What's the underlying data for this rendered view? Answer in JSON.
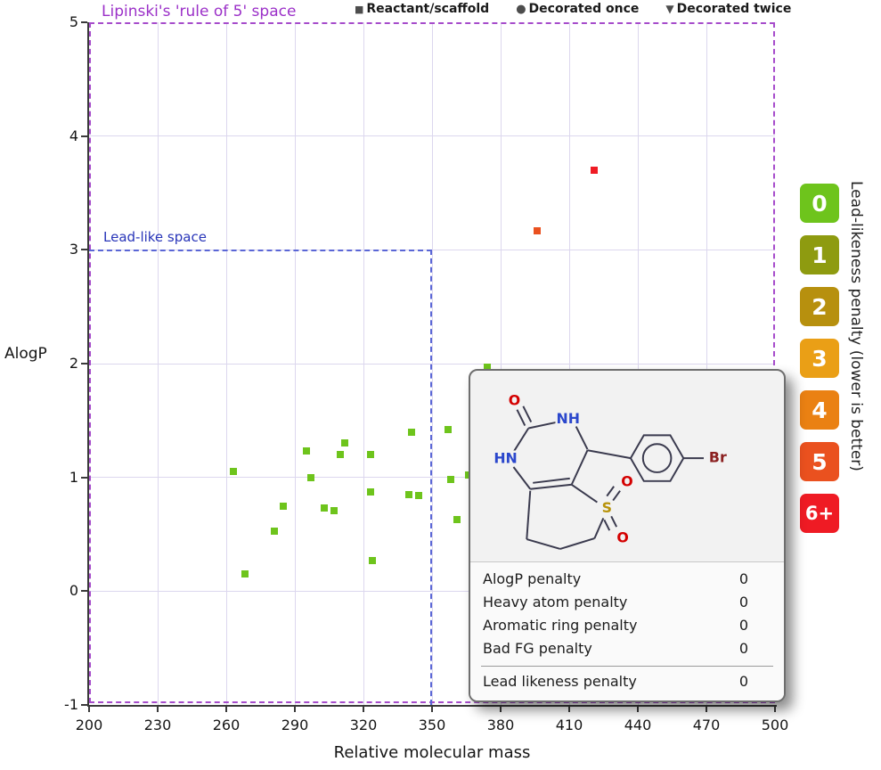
{
  "legend": {
    "items": [
      {
        "marker": "square",
        "glyph": "■",
        "label": "Reactant/scaffold"
      },
      {
        "marker": "circle",
        "glyph": "●",
        "label": "Decorated once"
      },
      {
        "marker": "triangle-down",
        "glyph": "▼",
        "label": "Decorated twice"
      }
    ]
  },
  "annotations": {
    "lipinski_label": "Lipinski's 'rule of 5' space",
    "leadlike_label": "Lead-like space"
  },
  "axes": {
    "x_label": "Relative molecular mass",
    "y_label": "AlogP",
    "x_ticks": [
      200,
      230,
      260,
      290,
      320,
      350,
      380,
      410,
      440,
      470,
      500
    ],
    "y_ticks": [
      -1,
      0,
      1,
      2,
      3,
      4,
      5
    ],
    "x_range": [
      200,
      500
    ],
    "y_range": [
      -1,
      5
    ]
  },
  "penalty_scale": {
    "title": "Lead-likeness penalty (lower is better)",
    "items": [
      {
        "label": "0",
        "color": "#6ec41c"
      },
      {
        "label": "1",
        "color": "#8e9b10"
      },
      {
        "label": "2",
        "color": "#b7900e"
      },
      {
        "label": "3",
        "color": "#ea9f16"
      },
      {
        "label": "4",
        "color": "#ea8113"
      },
      {
        "label": "5",
        "color": "#ea511f"
      },
      {
        "label": "6+",
        "color": "#ef1b24"
      }
    ]
  },
  "chart_data": {
    "type": "scatter",
    "title": "",
    "xlabel": "Relative molecular mass",
    "ylabel": "AlogP",
    "xlim": [
      200,
      500
    ],
    "ylim": [
      -1,
      5
    ],
    "grid": true,
    "legend_position": "top",
    "regions": [
      {
        "name": "Lipinski's 'rule of 5' space",
        "x_max": 500,
        "y_max": 5,
        "style": "dashed",
        "color": "#a64ccb"
      },
      {
        "name": "Lead-like space",
        "x_max": 350,
        "y_max": 3,
        "style": "dashed",
        "color": "#5a66d6"
      }
    ],
    "series": [
      {
        "name": "Reactant/scaffold (penalty 0)",
        "marker": "square",
        "penalty": "0",
        "points": [
          [
            263,
            1.05
          ],
          [
            268,
            0.15
          ],
          [
            281,
            0.53
          ],
          [
            285,
            0.75
          ],
          [
            295,
            1.23
          ],
          [
            297,
            1.0
          ],
          [
            303,
            0.73
          ],
          [
            307,
            0.71
          ],
          [
            310,
            1.2
          ],
          [
            312,
            1.3
          ],
          [
            323,
            1.2
          ],
          [
            323,
            0.87
          ],
          [
            324,
            0.27
          ],
          [
            340,
            0.85
          ],
          [
            341,
            1.4
          ],
          [
            344,
            0.84
          ],
          [
            357,
            1.42
          ],
          [
            358,
            0.98
          ],
          [
            361,
            0.63
          ],
          [
            366,
            1.02
          ],
          [
            374,
            1.97
          ]
        ]
      },
      {
        "name": "Reactant/scaffold (penalty 5)",
        "marker": "square",
        "penalty": "5",
        "points": [
          [
            396,
            3.17
          ]
        ]
      },
      {
        "name": "Reactant/scaffold (penalty 6+)",
        "marker": "square",
        "penalty": "6+",
        "points": [
          [
            421,
            3.7
          ]
        ]
      }
    ]
  },
  "tooltip": {
    "molecule": {
      "atoms": {
        "carbonyl_o": "O",
        "nh": "NH",
        "hn": "HN",
        "s": "S",
        "sulfonyl_o_up": "O",
        "sulfonyl_o_down": "O",
        "br": "Br"
      }
    },
    "rows": [
      {
        "label": "AlogP penalty",
        "value": "0"
      },
      {
        "label": "Heavy atom penalty",
        "value": "0"
      },
      {
        "label": "Aromatic ring penalty",
        "value": "0"
      },
      {
        "label": "Bad FG penalty",
        "value": "0"
      }
    ],
    "total": {
      "label": "Lead likeness penalty",
      "value": "0"
    }
  }
}
